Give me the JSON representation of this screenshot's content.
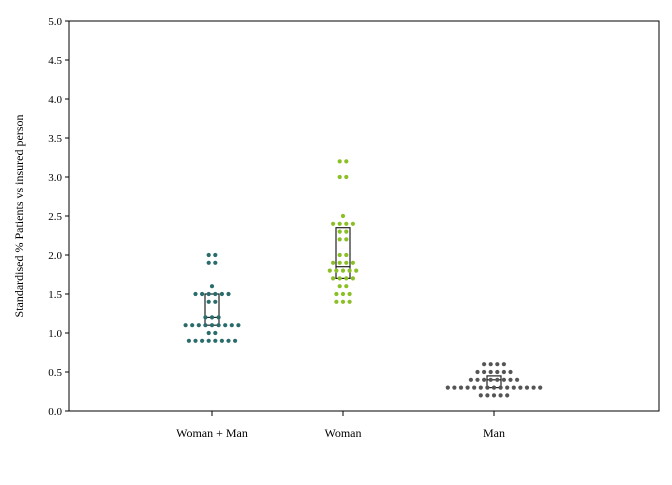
{
  "chart_data": {
    "type": "scatter",
    "subtype": "dot-strip plot with interquartile box",
    "title": "",
    "xlabel": "",
    "ylabel": "Standardised % Patients vs insured person",
    "ylim": [
      0.0,
      5.0
    ],
    "yticks": [
      "0.0",
      "0.5",
      "1.0",
      "1.5",
      "2.0",
      "2.5",
      "3.0",
      "3.5",
      "4.0",
      "4.5",
      "5.0"
    ],
    "grid": false,
    "legend": "none",
    "categories": [
      "Woman + Man",
      "Woman",
      "Man"
    ],
    "series": [
      {
        "category": "Woman + Man",
        "color": "#2a6b6b",
        "box": {
          "q1": 1.1,
          "median": 1.2,
          "q3": 1.5
        },
        "values": [
          2.0,
          2.0,
          1.9,
          1.9,
          1.6,
          1.5,
          1.5,
          1.5,
          1.5,
          1.5,
          1.5,
          1.4,
          1.4,
          1.2,
          1.2,
          1.2,
          1.1,
          1.1,
          1.1,
          1.1,
          1.1,
          1.1,
          1.1,
          1.1,
          1.1,
          1.0,
          1.0,
          0.9,
          0.9,
          0.9,
          0.9,
          0.9,
          0.9,
          0.9,
          0.9
        ]
      },
      {
        "category": "Woman",
        "color": "#8bbf26",
        "box": {
          "q1": 1.7,
          "median": 1.85,
          "q3": 2.35
        },
        "values": [
          3.2,
          3.2,
          3.0,
          3.0,
          2.5,
          2.4,
          2.4,
          2.4,
          2.4,
          2.3,
          2.3,
          2.2,
          2.2,
          2.0,
          2.0,
          1.9,
          1.9,
          1.9,
          1.9,
          1.8,
          1.8,
          1.8,
          1.8,
          1.8,
          1.7,
          1.7,
          1.7,
          1.7,
          1.6,
          1.6,
          1.5,
          1.5,
          1.5,
          1.4,
          1.4,
          1.4
        ]
      },
      {
        "category": "Man",
        "color": "#555555",
        "box": {
          "q1": 0.3,
          "median": 0.4,
          "q3": 0.45
        },
        "values": [
          0.6,
          0.6,
          0.6,
          0.6,
          0.5,
          0.5,
          0.5,
          0.5,
          0.5,
          0.5,
          0.4,
          0.4,
          0.4,
          0.4,
          0.4,
          0.4,
          0.4,
          0.4,
          0.3,
          0.3,
          0.3,
          0.3,
          0.3,
          0.3,
          0.3,
          0.3,
          0.3,
          0.3,
          0.3,
          0.3,
          0.3,
          0.3,
          0.3,
          0.2,
          0.2,
          0.2,
          0.2,
          0.2
        ]
      }
    ]
  }
}
